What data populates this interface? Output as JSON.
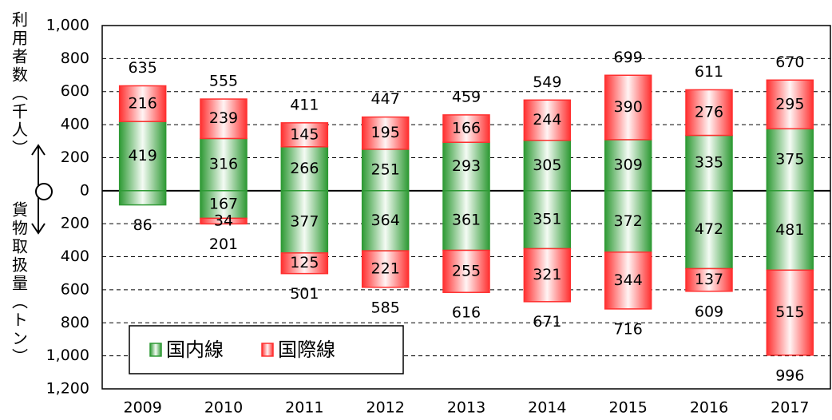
{
  "chart_data": {
    "type": "bar",
    "stacked": true,
    "y_title_top": "利用者数（千人）",
    "y_title_bottom": "貨物取扱量（トン）",
    "categories": [
      "2009",
      "2010",
      "2011",
      "2012",
      "2013",
      "2014",
      "2015",
      "2016",
      "2017"
    ],
    "series": [
      {
        "name": "国内線",
        "color": "#2f9a35",
        "values": [
          419,
          316,
          266,
          251,
          293,
          305,
          309,
          335,
          375
        ],
        "cargo_values": [
          -86,
          -167,
          -377,
          -364,
          -361,
          -351,
          -372,
          -472,
          -481
        ],
        "cargo_value_labels": [
          null,
          "167",
          "377",
          "364",
          "361",
          "351",
          "372",
          "472",
          "481"
        ]
      },
      {
        "name": "国際線",
        "color": "#ff3030",
        "values": [
          216,
          239,
          145,
          195,
          166,
          244,
          390,
          276,
          295
        ],
        "cargo_values": [
          0,
          -34,
          -125,
          -221,
          -255,
          -321,
          -344,
          -137,
          -515
        ],
        "cargo_value_labels": [
          null,
          "34",
          "125",
          "221",
          "255",
          "321",
          "344",
          "137",
          "515"
        ]
      }
    ],
    "totals": [
      635,
      555,
      411,
      447,
      459,
      549,
      699,
      611,
      670
    ],
    "cargo_totals": [
      -86,
      -201,
      -501,
      -585,
      -616,
      -671,
      -716,
      -609,
      -996
    ],
    "cargo_total_labels": [
      "86",
      "201",
      "501",
      "585",
      "616",
      "671",
      "716",
      "609",
      "996"
    ],
    "ylim": [
      -1200,
      1000
    ],
    "yticks": [
      {
        "value": 1000,
        "label": "1,000"
      },
      800,
      600,
      400,
      200,
      0,
      {
        "value": -200,
        "label": "200"
      },
      {
        "value": -400,
        "label": "400"
      },
      {
        "value": -600,
        "label": "600"
      },
      {
        "value": -800,
        "label": "800"
      },
      {
        "value": -1000,
        "label": "1,000"
      },
      {
        "value": -1200,
        "label": "1,200"
      }
    ],
    "grid": true,
    "legend": "lower left"
  }
}
